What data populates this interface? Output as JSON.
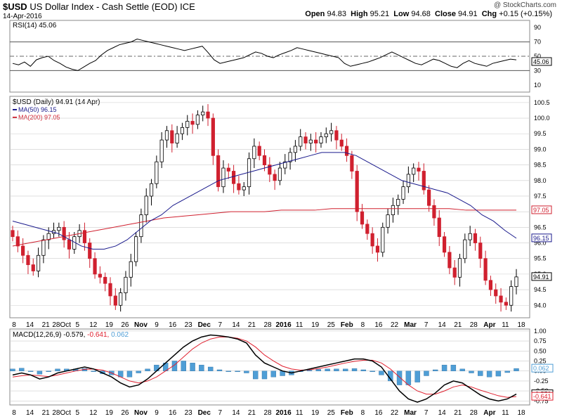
{
  "header": {
    "symbol": "$USD",
    "name": "US Dollar Index - Cash Settle (EOD)",
    "exchange": "ICE",
    "date": "14-Apr-2016",
    "credit": "@ StockCharts.com",
    "open_label": "Open",
    "open": "94.83",
    "high_label": "High",
    "high": "95.21",
    "low_label": "Low",
    "low": "94.68",
    "close_label": "Close",
    "close": "94.91",
    "chg_label": "Chg",
    "chg": "+0.15 (+0.15%)"
  },
  "rsi_panel": {
    "title": "RSI(14) 45.06",
    "ticks": [
      "90",
      "70",
      "50",
      "30",
      "10"
    ],
    "badge": "45.06"
  },
  "price_panel": {
    "title": "$USD (Daily) 94.91 (14 Apr)",
    "legend": [
      {
        "label": "MA(50) 96.15",
        "color": "#1a1a8c"
      },
      {
        "label": "MA(200) 97.05",
        "color": "#d0202f"
      }
    ],
    "ticks": [
      "100.5",
      "100.0",
      "99.5",
      "99.0",
      "98.5",
      "98.0",
      "97.5",
      "97.0",
      "96.5",
      "96.0",
      "95.5",
      "95.0",
      "94.5",
      "94.0"
    ],
    "badges": [
      {
        "label": "97.05",
        "color": "#d0202f"
      },
      {
        "label": "96.15",
        "color": "#1a1a8c"
      },
      {
        "label": "94.91",
        "color": "#000000"
      }
    ]
  },
  "macd_panel": {
    "title": "MACD(12,26,9) -0.579,",
    "signal_text": "-0.641,",
    "hist_text": "0.062",
    "ticks": [
      "1.00",
      "0.75",
      "0.50",
      "0.25",
      "0.00",
      "-0.25",
      "-0.50",
      "-0.75"
    ],
    "badges": [
      "0.062",
      "-0.579",
      "-0.641"
    ]
  },
  "x_axis": {
    "labels": [
      "8",
      "14",
      "21",
      "28Oct",
      "5",
      "12",
      "19",
      "26",
      "Nov",
      "9",
      "16",
      "23",
      "Dec",
      "7",
      "14",
      "21",
      "28",
      "2016",
      "11",
      "19",
      "25",
      "Feb",
      "8",
      "16",
      "22",
      "Mar",
      "7",
      "14",
      "21",
      "28",
      "Apr",
      "11",
      "18"
    ]
  },
  "colors": {
    "up": "#000000",
    "down": "#d0202f",
    "ma50": "#1a1a8c",
    "ma200": "#d0202f",
    "macd": "#000000",
    "signal": "#e0202f",
    "hist": "#4f9ed6",
    "grid": "#cccccc"
  },
  "chart_data": [
    {
      "type": "line",
      "title": "RSI(14) 45.06",
      "ylim": [
        0,
        100
      ],
      "x_start": "2015-09-08",
      "x_end": "2016-04-14",
      "reference_levels": [
        70,
        50,
        30
      ],
      "series": [
        {
          "name": "RSI(14)",
          "values": [
            40,
            38,
            42,
            36,
            45,
            48,
            50,
            44,
            40,
            35,
            32,
            30,
            35,
            40,
            44,
            52,
            58,
            62,
            66,
            68,
            70,
            74,
            72,
            70,
            68,
            66,
            64,
            62,
            60,
            58,
            60,
            62,
            64,
            55,
            45,
            40,
            42,
            44,
            46,
            48,
            52,
            56,
            54,
            50,
            48,
            52,
            55,
            58,
            62,
            60,
            58,
            56,
            54,
            52,
            50,
            48,
            40,
            36,
            38,
            40,
            42,
            45,
            48,
            52,
            56,
            52,
            48,
            44,
            40,
            38,
            42,
            46,
            44,
            40,
            36,
            34,
            40,
            44,
            40,
            38,
            36,
            40,
            42,
            44,
            46,
            45
          ]
        }
      ]
    },
    {
      "type": "candlestick",
      "title": "$USD (Daily) 94.91 (14 Apr)",
      "ylim": [
        93.6,
        100.7
      ],
      "x_start": "2015-09-08",
      "x_end": "2016-04-14",
      "series": [
        {
          "name": "$USD",
          "close": [
            96.2,
            95.9,
            95.6,
            95.3,
            95.1,
            95.6,
            96.1,
            96.3,
            96.4,
            96.5,
            96.1,
            95.8,
            96.2,
            96.4,
            96.0,
            95.5,
            95.0,
            94.9,
            94.7,
            94.3,
            94.0,
            94.4,
            94.9,
            95.4,
            96.2,
            96.9,
            97.5,
            97.9,
            98.6,
            99.3,
            99.6,
            99.2,
            99.5,
            99.7,
            99.9,
            99.8,
            100.1,
            100.2,
            100.0,
            98.8,
            97.8,
            98.4,
            98.3,
            97.9,
            97.7,
            97.8,
            98.7,
            99.1,
            98.8,
            98.5,
            98.2,
            98.0,
            98.4,
            98.6,
            98.9,
            99.1,
            99.4,
            99.2,
            99.3,
            99.2,
            99.4,
            99.5,
            99.6,
            99.3,
            99.1,
            98.8,
            98.3,
            97.0,
            96.6,
            96.3,
            95.9,
            95.7,
            96.5,
            96.9,
            97.2,
            97.4,
            97.8,
            98.2,
            98.4,
            98.3,
            97.7,
            97.2,
            96.8,
            96.2,
            95.7,
            95.2,
            94.9,
            95.5,
            96.1,
            96.3,
            96.0,
            95.5,
            94.8,
            94.5,
            94.3,
            94.1,
            94.0,
            94.6,
            94.91
          ]
        },
        {
          "name": "MA(50) 96.15",
          "values": [
            96.7,
            96.6,
            96.5,
            96.4,
            96.3,
            96.1,
            95.9,
            95.8,
            95.8,
            95.9,
            96.1,
            96.4,
            96.7,
            96.9,
            97.2,
            97.4,
            97.6,
            97.8,
            98.0,
            98.1,
            98.2,
            98.3,
            98.4,
            98.5,
            98.6,
            98.7,
            98.8,
            98.9,
            98.9,
            98.9,
            98.8,
            98.6,
            98.4,
            98.2,
            98.0,
            97.9,
            97.8,
            97.7,
            97.6,
            97.4,
            97.2,
            96.9,
            96.7,
            96.4,
            96.15
          ]
        },
        {
          "name": "MA(200) 97.05",
          "values": [
            95.9,
            96.0,
            96.1,
            96.2,
            96.3,
            96.4,
            96.5,
            96.6,
            96.7,
            96.8,
            96.85,
            96.9,
            96.95,
            97.0,
            97.0,
            97.0,
            97.05,
            97.05,
            97.05,
            97.1,
            97.1,
            97.1,
            97.1,
            97.1,
            97.1,
            97.1,
            97.1,
            97.05,
            97.05,
            97.05,
            97.05
          ]
        }
      ]
    },
    {
      "type": "line",
      "title": "MACD(12,26,9) -0.579, -0.641, 0.062",
      "ylim": [
        -0.85,
        1.05
      ],
      "x_start": "2015-09-08",
      "x_end": "2016-04-14",
      "series": [
        {
          "name": "MACD(12,26,9)",
          "values": [
            -0.1,
            -0.05,
            -0.1,
            -0.2,
            -0.15,
            -0.05,
            0.0,
            0.05,
            0.1,
            0.05,
            -0.05,
            -0.15,
            -0.3,
            -0.4,
            -0.35,
            -0.2,
            0.0,
            0.2,
            0.4,
            0.6,
            0.75,
            0.85,
            0.9,
            0.88,
            0.85,
            0.8,
            0.7,
            0.4,
            0.2,
            0.1,
            0.0,
            -0.05,
            0.0,
            0.05,
            0.1,
            0.15,
            0.2,
            0.25,
            0.3,
            0.3,
            0.25,
            0.1,
            -0.2,
            -0.5,
            -0.7,
            -0.78,
            -0.7,
            -0.55,
            -0.35,
            -0.25,
            -0.3,
            -0.45,
            -0.6,
            -0.7,
            -0.75,
            -0.7,
            -0.579
          ]
        },
        {
          "name": "signal",
          "values": [
            -0.15,
            -0.12,
            -0.1,
            -0.12,
            -0.14,
            -0.1,
            -0.05,
            0.0,
            0.04,
            0.05,
            0.02,
            -0.05,
            -0.15,
            -0.25,
            -0.3,
            -0.25,
            -0.15,
            0.0,
            0.15,
            0.35,
            0.55,
            0.7,
            0.8,
            0.85,
            0.85,
            0.82,
            0.75,
            0.6,
            0.4,
            0.25,
            0.12,
            0.05,
            0.02,
            0.03,
            0.06,
            0.1,
            0.15,
            0.2,
            0.24,
            0.27,
            0.27,
            0.2,
            0.05,
            -0.15,
            -0.35,
            -0.5,
            -0.58,
            -0.58,
            -0.5,
            -0.4,
            -0.35,
            -0.4,
            -0.48,
            -0.55,
            -0.62,
            -0.66,
            -0.641
          ]
        },
        {
          "name": "histogram",
          "values": [
            0.05,
            0.07,
            0.0,
            -0.08,
            -0.01,
            0.05,
            0.05,
            0.05,
            0.06,
            0.0,
            -0.07,
            -0.1,
            -0.15,
            -0.15,
            -0.05,
            0.05,
            0.15,
            0.2,
            0.25,
            0.25,
            0.2,
            0.15,
            0.1,
            0.03,
            0.0,
            -0.02,
            -0.05,
            -0.2,
            -0.2,
            -0.15,
            -0.12,
            -0.1,
            -0.02,
            0.02,
            0.04,
            0.05,
            0.05,
            0.05,
            0.06,
            0.03,
            -0.02,
            -0.1,
            -0.25,
            -0.35,
            -0.35,
            -0.28,
            -0.12,
            0.03,
            0.15,
            0.15,
            0.05,
            -0.05,
            -0.12,
            -0.15,
            -0.13,
            -0.04,
            0.062
          ]
        }
      ]
    }
  ]
}
